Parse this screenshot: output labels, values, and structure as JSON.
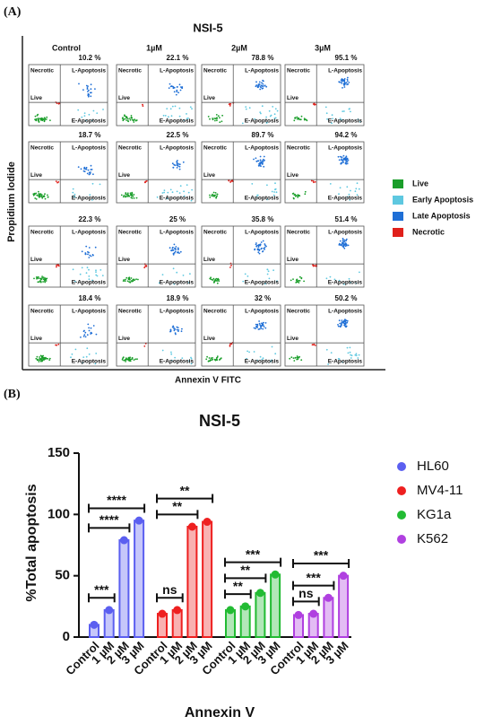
{
  "panel_a": {
    "label": "(A)",
    "title": "NSI-5",
    "columns": [
      "Control",
      "1µM",
      "2µM",
      "3µM"
    ],
    "percentages": [
      [
        "10.2 %",
        "22.1 %",
        "78.8 %",
        "95.1 %"
      ],
      [
        "18.7 %",
        "22.5 %",
        "89.7 %",
        "94.2 %"
      ],
      [
        "22.3 %",
        "25 %",
        "35.8 %",
        "51.4 %"
      ],
      [
        "18.4 %",
        "18.9 %",
        "32 %",
        "50.2 %"
      ]
    ],
    "quadrants": {
      "top_left": "Necrotic",
      "top_right": "L-Apoptosis",
      "bottom_left": "Live",
      "bottom_right": "E-Apoptosis"
    },
    "y_label": "Propidium Iodide",
    "x_label": "Annexin V FITC",
    "legend": [
      {
        "name": "Live",
        "color": "#1a9e2a"
      },
      {
        "name": "Early Apoptosis",
        "color": "#5ec8e0"
      },
      {
        "name": "Late Apoptosis",
        "color": "#1f6fd6"
      },
      {
        "name": "Necrotic",
        "color": "#e0201b"
      }
    ]
  },
  "chart_data": {
    "type": "bar",
    "panel_label": "(B)",
    "title": "NSI-5",
    "y_label": "%Total apoptosis",
    "x_label": "Annexin V",
    "categories": [
      "Control",
      "1 µM",
      "2 µM",
      "3 µM"
    ],
    "ylim": [
      0,
      150
    ],
    "yticks": [
      0,
      50,
      100,
      150
    ],
    "series": [
      {
        "name": "HL60",
        "color": "#5b5ff0",
        "values": [
          10,
          22,
          79,
          95
        ],
        "significance": [
          "***",
          "****",
          "****"
        ]
      },
      {
        "name": "MV4-11",
        "color": "#ee2020",
        "values": [
          19,
          22,
          90,
          94
        ],
        "significance": [
          "ns",
          "**",
          "**"
        ]
      },
      {
        "name": "KG1a",
        "color": "#22bb33",
        "values": [
          22,
          25,
          36,
          51
        ],
        "significance": [
          "**",
          "**",
          "***"
        ]
      },
      {
        "name": "K562",
        "color": "#b040e0",
        "values": [
          18,
          19,
          32,
          50
        ],
        "significance": [
          "ns",
          "***",
          "***"
        ]
      }
    ]
  }
}
